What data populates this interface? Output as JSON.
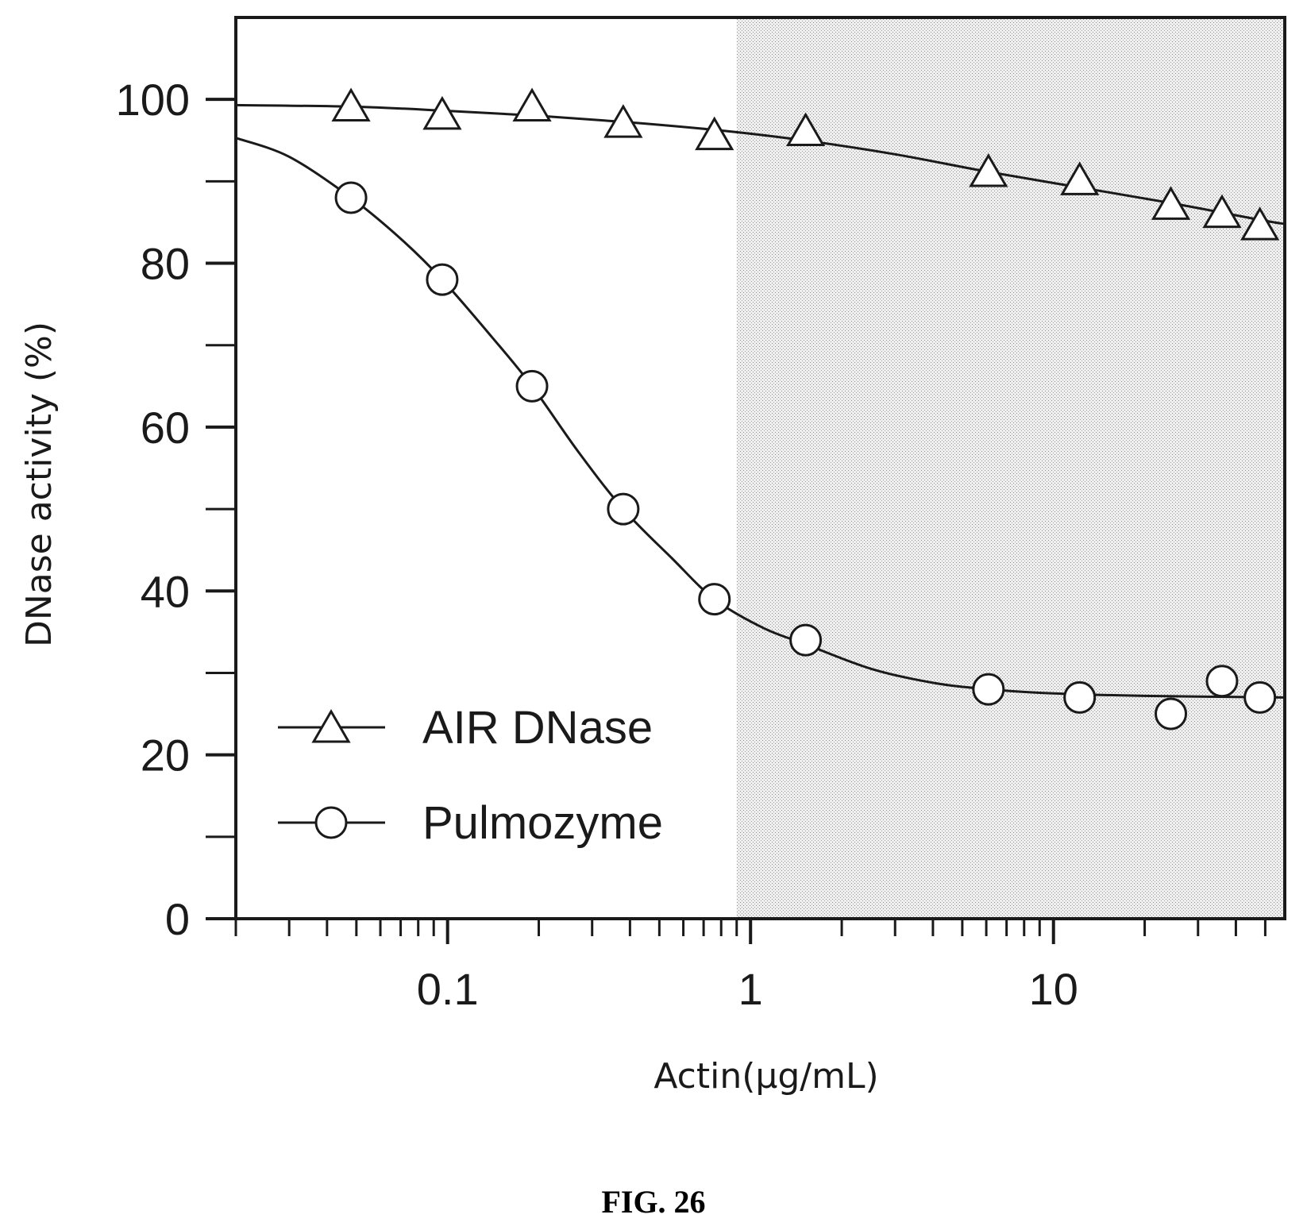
{
  "chart_data": {
    "type": "scatter",
    "x_scale": "log",
    "xlabel": "Actin(µg/mL)",
    "ylabel": "DNase activity (%)",
    "xlim": [
      0.02,
      58
    ],
    "ylim": [
      0,
      110
    ],
    "x_tick_labels": [
      {
        "value": 0.1,
        "label": "0.1"
      },
      {
        "value": 1,
        "label": "1"
      },
      {
        "value": 10,
        "label": "10"
      }
    ],
    "y_tick_labels": [
      {
        "value": 0,
        "label": "0"
      },
      {
        "value": 20,
        "label": "20"
      },
      {
        "value": 40,
        "label": "40"
      },
      {
        "value": 60,
        "label": "60"
      },
      {
        "value": 80,
        "label": "80"
      },
      {
        "value": 100,
        "label": "100"
      }
    ],
    "y_minor_ticks": [
      10,
      30,
      50,
      70,
      90
    ],
    "shaded_region_x": [
      0.9,
      58
    ],
    "legend_position": "lower-left",
    "series": [
      {
        "name": "AIR DNase",
        "marker": "triangle",
        "x": [
          0.048,
          0.096,
          0.19,
          0.38,
          0.76,
          1.52,
          6.1,
          12.2,
          24.4,
          36,
          48
        ],
        "y": [
          99,
          98,
          99,
          97,
          95.5,
          96,
          91,
          90,
          87,
          86,
          84.5
        ],
        "fit_x": [
          0.02,
          0.05,
          0.1,
          0.2,
          0.4,
          0.8,
          1.5,
          3,
          6,
          12,
          24,
          48,
          58
        ],
        "fit_y": [
          99.3,
          99.1,
          98.6,
          98.0,
          97.2,
          96.2,
          95.0,
          93.3,
          91.2,
          89.3,
          87.4,
          85.3,
          84.8
        ]
      },
      {
        "name": "Pulmozyme",
        "marker": "circle",
        "x": [
          0.048,
          0.096,
          0.19,
          0.38,
          0.76,
          1.52,
          6.1,
          12.2,
          24.4,
          36,
          48
        ],
        "y": [
          88,
          78,
          65,
          50,
          39,
          34,
          28,
          27,
          25,
          29,
          27
        ],
        "fit_x": [
          0.02,
          0.03,
          0.048,
          0.07,
          0.096,
          0.14,
          0.19,
          0.27,
          0.38,
          0.55,
          0.76,
          1.1,
          1.52,
          2.5,
          4,
          6.1,
          10,
          20,
          58
        ],
        "fit_y": [
          95.3,
          93,
          88,
          83,
          78,
          71,
          65,
          57,
          50,
          44,
          39,
          35.5,
          33.5,
          30.5,
          28.8,
          28,
          27.5,
          27.2,
          27
        ]
      }
    ]
  },
  "caption": "FIG. 26"
}
